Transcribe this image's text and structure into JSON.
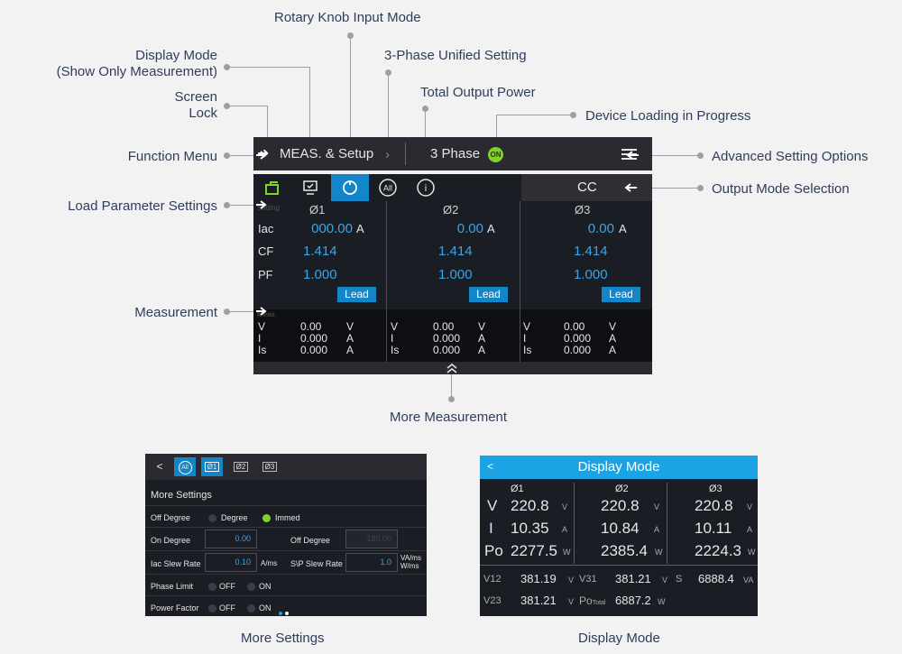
{
  "callouts": {
    "rotary_knob": "Rotary Knob Input Mode",
    "display_mode_1": "Display Mode",
    "display_mode_2": "(Show Only Measurement)",
    "three_phase_unified": "3-Phase Unified Setting",
    "total_output_power": "Total Output Power",
    "screen_lock_1": "Screen",
    "screen_lock_2": "Lock",
    "device_loading": "Device Loading in Progress",
    "function_menu": "Function Menu",
    "advanced_settings": "Advanced Setting Options",
    "load_parameter": "Load Parameter Settings",
    "output_mode": "Output Mode Selection",
    "measurement": "Measurement",
    "more_measurement": "More Measurement",
    "more_settings_caption": "More Settings",
    "display_mode_caption": "Display Mode"
  },
  "screen": {
    "menu_title": "MEAS. & Setup",
    "menu_sep": "›",
    "phase_mode": "3 Phase",
    "on_badge": "ON",
    "setting_tag": "Setting",
    "meas_tag": "Meas.",
    "output_mode": "CC",
    "all_icon": "All",
    "info_icon": "i",
    "phases": [
      "Ø1",
      "Ø2",
      "Ø3"
    ],
    "rows": [
      {
        "label": "Iac",
        "values": [
          "000.00",
          "0.00",
          "0.00"
        ],
        "unit": "A"
      },
      {
        "label": "CF",
        "values": [
          "1.414",
          "1.414",
          "1.414"
        ],
        "unit": ""
      },
      {
        "label": "PF",
        "values": [
          "1.000",
          "1.000",
          "1.000"
        ],
        "unit": ""
      }
    ],
    "lead_label": "Lead",
    "meas_rows": [
      {
        "label": "V",
        "value": "0.00",
        "unit": "V"
      },
      {
        "label": "I",
        "value": "0.000",
        "unit": "A"
      },
      {
        "label": "Is",
        "value": "0.000",
        "unit": "A"
      }
    ]
  },
  "more_settings": {
    "back": "<",
    "tabs": [
      "All",
      "Ø1",
      "Ø2",
      "Ø3"
    ],
    "title": "More Settings",
    "off_degree_label": "Off Degree",
    "degree_opt": "Degree",
    "immed_opt": "Immed",
    "on_degree_label": "On Degree",
    "on_degree_value": "0.00",
    "off_degree_label2": "Off Degree",
    "off_degree_value": "180.00",
    "iac_slew_label": "Iac Slew Rate",
    "iac_slew_value": "0.10",
    "iac_slew_unit": "A/ms",
    "svp_slew_label": "S\\P Slew Rate",
    "svp_slew_value": "1.0",
    "svp_unit_1": "VA/ms",
    "svp_unit_2": "W/ms",
    "phase_limit_label": "Phase Limit",
    "power_factor_label": "Power Factor",
    "off_opt": "OFF",
    "on_opt": "ON"
  },
  "display_mode": {
    "back": "<",
    "title": "Display Mode",
    "phases": [
      "Ø1",
      "Ø2",
      "Ø3"
    ],
    "rows": [
      {
        "label": "V",
        "values": [
          "220.8",
          "220.8",
          "220.8"
        ],
        "unit": "V"
      },
      {
        "label": "I",
        "values": [
          "10.35",
          "10.84",
          "10.11"
        ],
        "unit": "A"
      },
      {
        "label": "Po",
        "values": [
          "2277.5",
          "2385.4",
          "2224.3"
        ],
        "unit": "W"
      }
    ],
    "v12_label": "V12",
    "v12_value": "381.19",
    "v12_unit": "V",
    "v31_label": "V31",
    "v31_value": "381.21",
    "v31_unit": "V",
    "s_label": "S",
    "s_value": "6888.4",
    "s_unit": "VA",
    "v23_label": "V23",
    "v23_value": "381.21",
    "v23_unit": "V",
    "po_label": "Po",
    "po_sub": "Total",
    "po_value": "6887.2",
    "po_unit": "W"
  }
}
